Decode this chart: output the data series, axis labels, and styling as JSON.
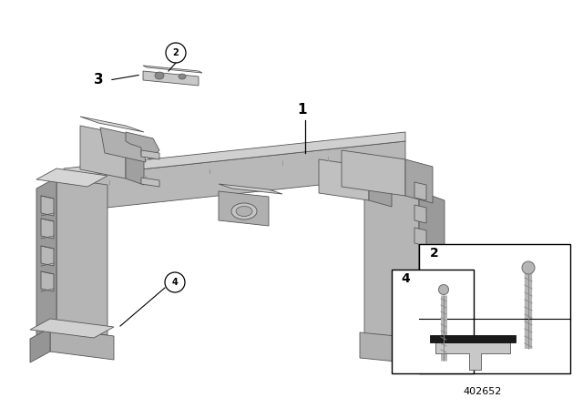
{
  "bg_color": "#ffffff",
  "fig_width": 6.4,
  "fig_height": 4.48,
  "dpi": 100,
  "part_number": "402652",
  "gray_face": "#c0c0c0",
  "gray_top": "#d8d8d8",
  "gray_side": "#a0a0a0",
  "gray_dark": "#888888",
  "gray_darker": "#707070",
  "edge_color": "#555555",
  "lw": 0.6
}
